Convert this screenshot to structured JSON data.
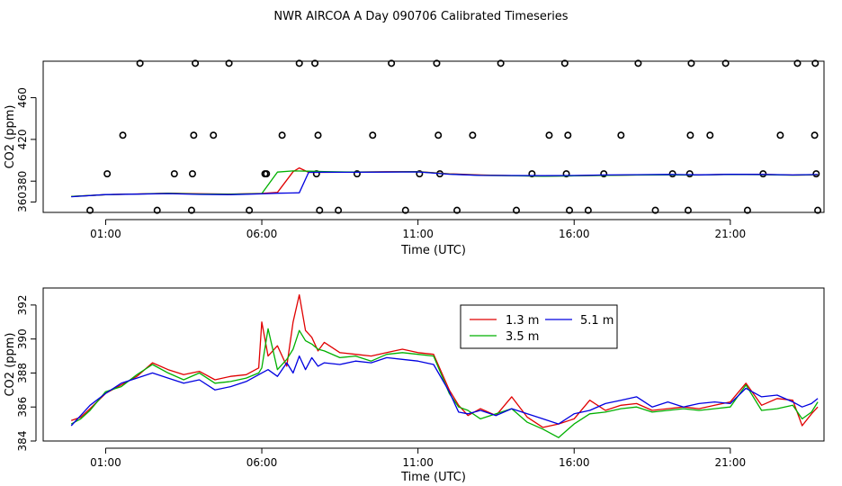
{
  "figure_title": "NWR AIRCOA A  Day 090706  Calibrated Timeseries",
  "colors": {
    "s13": "#e00000",
    "s35": "#00b000",
    "s51": "#0000e0",
    "axes": "#000000"
  },
  "chart_data": [
    {
      "type": "scatter",
      "name": "top-panel",
      "xlabel": "Time (UTC)",
      "ylabel": "CO2 (ppm)",
      "xlim": [
        -1.0,
        24.0
      ],
      "ylim": [
        350,
        495
      ],
      "xticks": [
        1,
        6,
        11,
        16,
        21
      ],
      "xtick_labels": [
        "01:00",
        "06:00",
        "11:00",
        "16:00",
        "21:00"
      ],
      "yticks": [
        360,
        380,
        420,
        460
      ],
      "ytick_labels": [
        "360",
        "380",
        "420",
        "460"
      ],
      "series": [
        {
          "name": "calibration-points",
          "marker": "open-circle",
          "x": [
            0.5,
            1.05,
            1.55,
            2.1,
            2.65,
            3.2,
            3.75,
            3.78,
            3.82,
            3.87,
            4.45,
            4.95,
            5.6,
            6.1,
            6.15,
            6.65,
            7.2,
            7.7,
            7.75,
            7.8,
            7.85,
            8.45,
            9.05,
            9.55,
            10.15,
            10.6,
            11.05,
            11.6,
            11.65,
            11.7,
            12.25,
            12.75,
            13.65,
            14.15,
            14.65,
            15.2,
            15.7,
            15.75,
            15.8,
            15.85,
            16.45,
            16.95,
            17.5,
            18.05,
            18.6,
            19.15,
            19.65,
            19.7,
            19.72,
            19.75,
            20.35,
            20.85,
            21.55,
            22.05,
            22.6,
            23.15,
            23.7,
            23.72,
            23.75,
            23.8
          ],
          "y": [
            352,
            387,
            424,
            493,
            352,
            387,
            352,
            387,
            424,
            493,
            424,
            493,
            352,
            387,
            387,
            424,
            493,
            493,
            387,
            424,
            352,
            352,
            387,
            424,
            493,
            352,
            387,
            493,
            424,
            387,
            352,
            424,
            493,
            352,
            387,
            424,
            493,
            387,
            424,
            352,
            352,
            387,
            424,
            493,
            352,
            387,
            352,
            387,
            424,
            493,
            424,
            493,
            352,
            387,
            424,
            493,
            424,
            493,
            387,
            352
          ]
        },
        {
          "name": "1.3 m",
          "color": "#e00000",
          "style": "line",
          "x": [
            -0.1,
            1.0,
            2.0,
            3.0,
            4.0,
            5.0,
            6.0,
            6.5,
            7.0,
            7.2,
            7.5,
            8.0,
            9.0,
            10.0,
            11.0,
            12.0,
            13.0,
            14.0,
            15.0,
            16.0,
            17.0,
            18.0,
            19.0,
            20.0,
            21.0,
            22.0,
            23.0,
            23.8
          ],
          "y": [
            365.3,
            367.0,
            367.7,
            368.4,
            367.9,
            367.6,
            368.2,
            369.2,
            389.0,
            392.6,
            388.4,
            388.4,
            388.7,
            389.0,
            389.2,
            387.0,
            385.9,
            385.3,
            384.8,
            385.2,
            385.6,
            385.9,
            386.1,
            385.9,
            386.6,
            386.4,
            385.8,
            386.0
          ]
        },
        {
          "name": "3.5 m",
          "color": "#00b000",
          "style": "line",
          "x": [
            -0.1,
            1.0,
            2.0,
            3.0,
            4.0,
            5.0,
            6.0,
            6.5,
            7.0,
            7.2,
            7.5,
            8.0,
            9.0,
            10.0,
            11.0,
            12.0,
            13.0,
            14.0,
            15.0,
            16.0,
            17.0,
            18.0,
            19.0,
            20.0,
            21.0,
            22.0,
            23.0,
            23.8
          ],
          "y": [
            365.3,
            367.0,
            367.6,
            368.3,
            367.6,
            367.4,
            368.0,
            388.7,
            389.8,
            389.7,
            389.5,
            389.1,
            388.7,
            388.8,
            389.0,
            386.8,
            385.6,
            385.2,
            384.6,
            385.0,
            385.5,
            385.8,
            386.0,
            385.8,
            386.4,
            386.2,
            385.7,
            386.2
          ]
        },
        {
          "name": "5.1 m",
          "color": "#0000e0",
          "style": "line",
          "x": [
            -0.1,
            1.0,
            2.0,
            3.0,
            4.0,
            5.0,
            6.0,
            6.5,
            7.0,
            7.2,
            7.5,
            8.0,
            9.0,
            10.0,
            11.0,
            12.0,
            13.0,
            14.0,
            15.0,
            16.0,
            17.0,
            18.0,
            19.0,
            20.0,
            21.0,
            22.0,
            23.0,
            23.8
          ],
          "y": [
            365.0,
            367.1,
            367.5,
            368.0,
            367.3,
            367.0,
            367.8,
            368.4,
            368.6,
            368.8,
            388.4,
            388.6,
            388.5,
            388.7,
            388.8,
            386.6,
            385.5,
            385.4,
            385.2,
            385.4,
            385.9,
            386.2,
            386.4,
            386.0,
            386.5,
            386.4,
            385.9,
            386.3
          ]
        }
      ]
    },
    {
      "type": "line",
      "name": "bottom-panel",
      "xlabel": "Time (UTC)",
      "ylabel": "CO2 (ppm)",
      "xlim": [
        -1.0,
        24.0
      ],
      "ylim": [
        384,
        393
      ],
      "xticks": [
        1,
        6,
        11,
        16,
        21
      ],
      "xtick_labels": [
        "01:00",
        "06:00",
        "11:00",
        "16:00",
        "21:00"
      ],
      "yticks": [
        384,
        386,
        388,
        390,
        392
      ],
      "ytick_labels": [
        "384",
        "386",
        "388",
        "390",
        "392"
      ],
      "legend": {
        "position": "top-center",
        "entries": [
          "1.3 m",
          "3.5 m",
          "5.1 m"
        ]
      },
      "series": [
        {
          "name": "1.3 m",
          "color": "#e00000",
          "x": [
            -0.1,
            0.2,
            0.5,
            1.0,
            1.5,
            2.0,
            2.5,
            3.0,
            3.5,
            4.0,
            4.5,
            5.0,
            5.5,
            5.9,
            6.0,
            6.2,
            6.5,
            6.8,
            7.0,
            7.2,
            7.4,
            7.6,
            7.8,
            8.0,
            8.5,
            9.0,
            9.5,
            10.0,
            10.5,
            11.0,
            11.5,
            12.0,
            12.3,
            12.6,
            13.0,
            13.5,
            14.0,
            14.5,
            15.0,
            15.5,
            16.0,
            16.5,
            17.0,
            17.5,
            18.0,
            18.5,
            19.0,
            19.5,
            20.0,
            20.5,
            21.0,
            21.5,
            22.0,
            22.5,
            23.0,
            23.3,
            23.6,
            23.8
          ],
          "y": [
            385.2,
            385.4,
            385.9,
            386.8,
            387.3,
            387.8,
            388.6,
            388.2,
            387.9,
            388.1,
            387.6,
            387.8,
            387.9,
            388.3,
            391.0,
            389.0,
            389.6,
            388.4,
            391.0,
            392.6,
            390.5,
            390.1,
            389.3,
            389.8,
            389.2,
            389.1,
            389.0,
            389.2,
            389.4,
            389.2,
            389.1,
            387.0,
            386.1,
            385.5,
            385.9,
            385.5,
            386.6,
            385.4,
            384.8,
            385.0,
            385.3,
            386.4,
            385.8,
            386.1,
            386.2,
            385.8,
            385.9,
            386.0,
            385.9,
            386.1,
            386.3,
            387.4,
            386.1,
            386.5,
            386.4,
            384.9,
            385.6,
            386.0
          ]
        },
        {
          "name": "3.5 m",
          "color": "#00b000",
          "x": [
            -0.1,
            0.2,
            0.5,
            1.0,
            1.5,
            2.0,
            2.5,
            3.0,
            3.5,
            4.0,
            4.5,
            5.0,
            5.5,
            5.9,
            6.0,
            6.2,
            6.5,
            6.8,
            7.0,
            7.2,
            7.4,
            7.6,
            7.8,
            8.0,
            8.5,
            9.0,
            9.5,
            10.0,
            10.5,
            11.0,
            11.5,
            12.0,
            12.3,
            12.6,
            13.0,
            13.5,
            14.0,
            14.5,
            15.0,
            15.5,
            16.0,
            16.5,
            17.0,
            17.5,
            18.0,
            18.5,
            19.0,
            19.5,
            20.0,
            20.5,
            21.0,
            21.5,
            22.0,
            22.5,
            23.0,
            23.3,
            23.6,
            23.8
          ],
          "y": [
            385.0,
            385.3,
            385.8,
            386.9,
            387.2,
            387.9,
            388.5,
            388.0,
            387.6,
            388.0,
            387.4,
            387.5,
            387.7,
            388.0,
            388.3,
            390.6,
            388.2,
            388.8,
            389.4,
            390.5,
            389.9,
            389.7,
            389.4,
            389.3,
            388.9,
            389.0,
            388.7,
            389.1,
            389.2,
            389.1,
            389.0,
            386.8,
            386.0,
            385.8,
            385.3,
            385.6,
            385.9,
            385.1,
            384.7,
            384.2,
            385.0,
            385.6,
            385.7,
            385.9,
            386.0,
            385.7,
            385.8,
            385.9,
            385.8,
            385.9,
            386.0,
            387.3,
            385.8,
            385.9,
            386.1,
            385.3,
            385.7,
            386.3
          ]
        },
        {
          "name": "5.1 m",
          "color": "#0000e0",
          "x": [
            -0.1,
            0.2,
            0.5,
            1.0,
            1.5,
            2.0,
            2.5,
            3.0,
            3.5,
            4.0,
            4.5,
            5.0,
            5.5,
            5.9,
            6.0,
            6.2,
            6.5,
            6.8,
            7.0,
            7.2,
            7.4,
            7.6,
            7.8,
            8.0,
            8.5,
            9.0,
            9.5,
            10.0,
            10.5,
            11.0,
            11.5,
            12.0,
            12.3,
            12.6,
            13.0,
            13.5,
            14.0,
            14.5,
            15.0,
            15.5,
            16.0,
            16.5,
            17.0,
            17.5,
            18.0,
            18.5,
            19.0,
            19.5,
            20.0,
            20.5,
            21.0,
            21.5,
            22.0,
            22.5,
            23.0,
            23.3,
            23.6,
            23.8
          ],
          "y": [
            384.9,
            385.5,
            386.1,
            386.8,
            387.4,
            387.7,
            388.0,
            387.7,
            387.4,
            387.6,
            387.0,
            387.2,
            387.5,
            387.9,
            388.0,
            388.2,
            387.8,
            388.6,
            388.0,
            389.0,
            388.2,
            388.9,
            388.4,
            388.6,
            388.5,
            388.7,
            388.6,
            388.9,
            388.8,
            388.7,
            388.5,
            386.9,
            385.7,
            385.6,
            385.8,
            385.5,
            385.9,
            385.6,
            385.3,
            385.0,
            385.6,
            385.8,
            386.2,
            386.4,
            386.6,
            386.0,
            386.3,
            386.0,
            386.2,
            386.3,
            386.2,
            387.1,
            386.6,
            386.7,
            386.3,
            386.0,
            386.2,
            386.5
          ]
        }
      ]
    }
  ]
}
